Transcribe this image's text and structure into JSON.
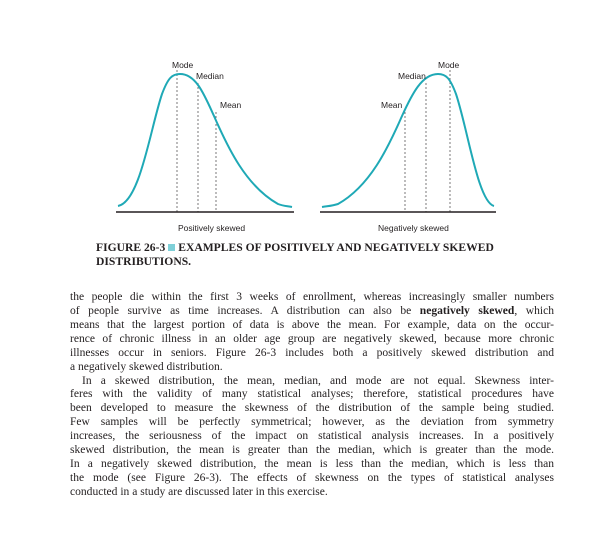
{
  "figure": {
    "left_panel": {
      "labels": {
        "mode": "Mode",
        "median": "Median",
        "mean": "Mean"
      },
      "caption": "Positively skewed"
    },
    "right_panel": {
      "labels": {
        "mode": "Mode",
        "median": "Median",
        "mean": "Mean"
      },
      "caption": "Negatively skewed"
    },
    "curve_color": "#1fa9b6",
    "caption": {
      "number": "FIGURE 26-3",
      "marker_color": "#7fd0d8",
      "title_line1": "EXAMPLES OF POSITIVELY AND NEGATIVELY SKEWED",
      "title_line2": "DISTRIBUTIONS."
    }
  },
  "body": {
    "p1": [
      "the people die within the first 3 weeks of enrollment, whereas increasingly smaller numbers",
      "of people survive as time increases. A distribution can also be ",
      "means that the largest portion of data is above the mean. For example, data on the occur-",
      "rence of chronic illness in an older age group are negatively skewed, because more chronic",
      "illnesses occur in seniors. Figure 26-3 includes both a positively skewed distribution and",
      "a negatively skewed distribution."
    ],
    "p1_bold": "negatively skewed",
    "p1_line2_tail": ", which",
    "p2": [
      "In a skewed distribution, the mean, median, and mode are not equal. Skewness inter-",
      "feres with the validity of many statistical analyses; therefore, statistical procedures have",
      "been developed to measure the skewness of the distribution of the sample being studied.",
      "Few samples will be perfectly symmetrical; however, as the deviation from symmetry",
      "increases, the seriousness of the impact on statistical analysis increases. In a positively",
      "skewed distribution, the mean is greater than the median, which is greater than the mode.",
      "In a negatively skewed distribution, the mean is less than the median, which is less than",
      "the mode (see Figure 26-3). The effects of skewness on the types of statistical analyses",
      "conducted in a study are discussed later in this exercise."
    ]
  }
}
